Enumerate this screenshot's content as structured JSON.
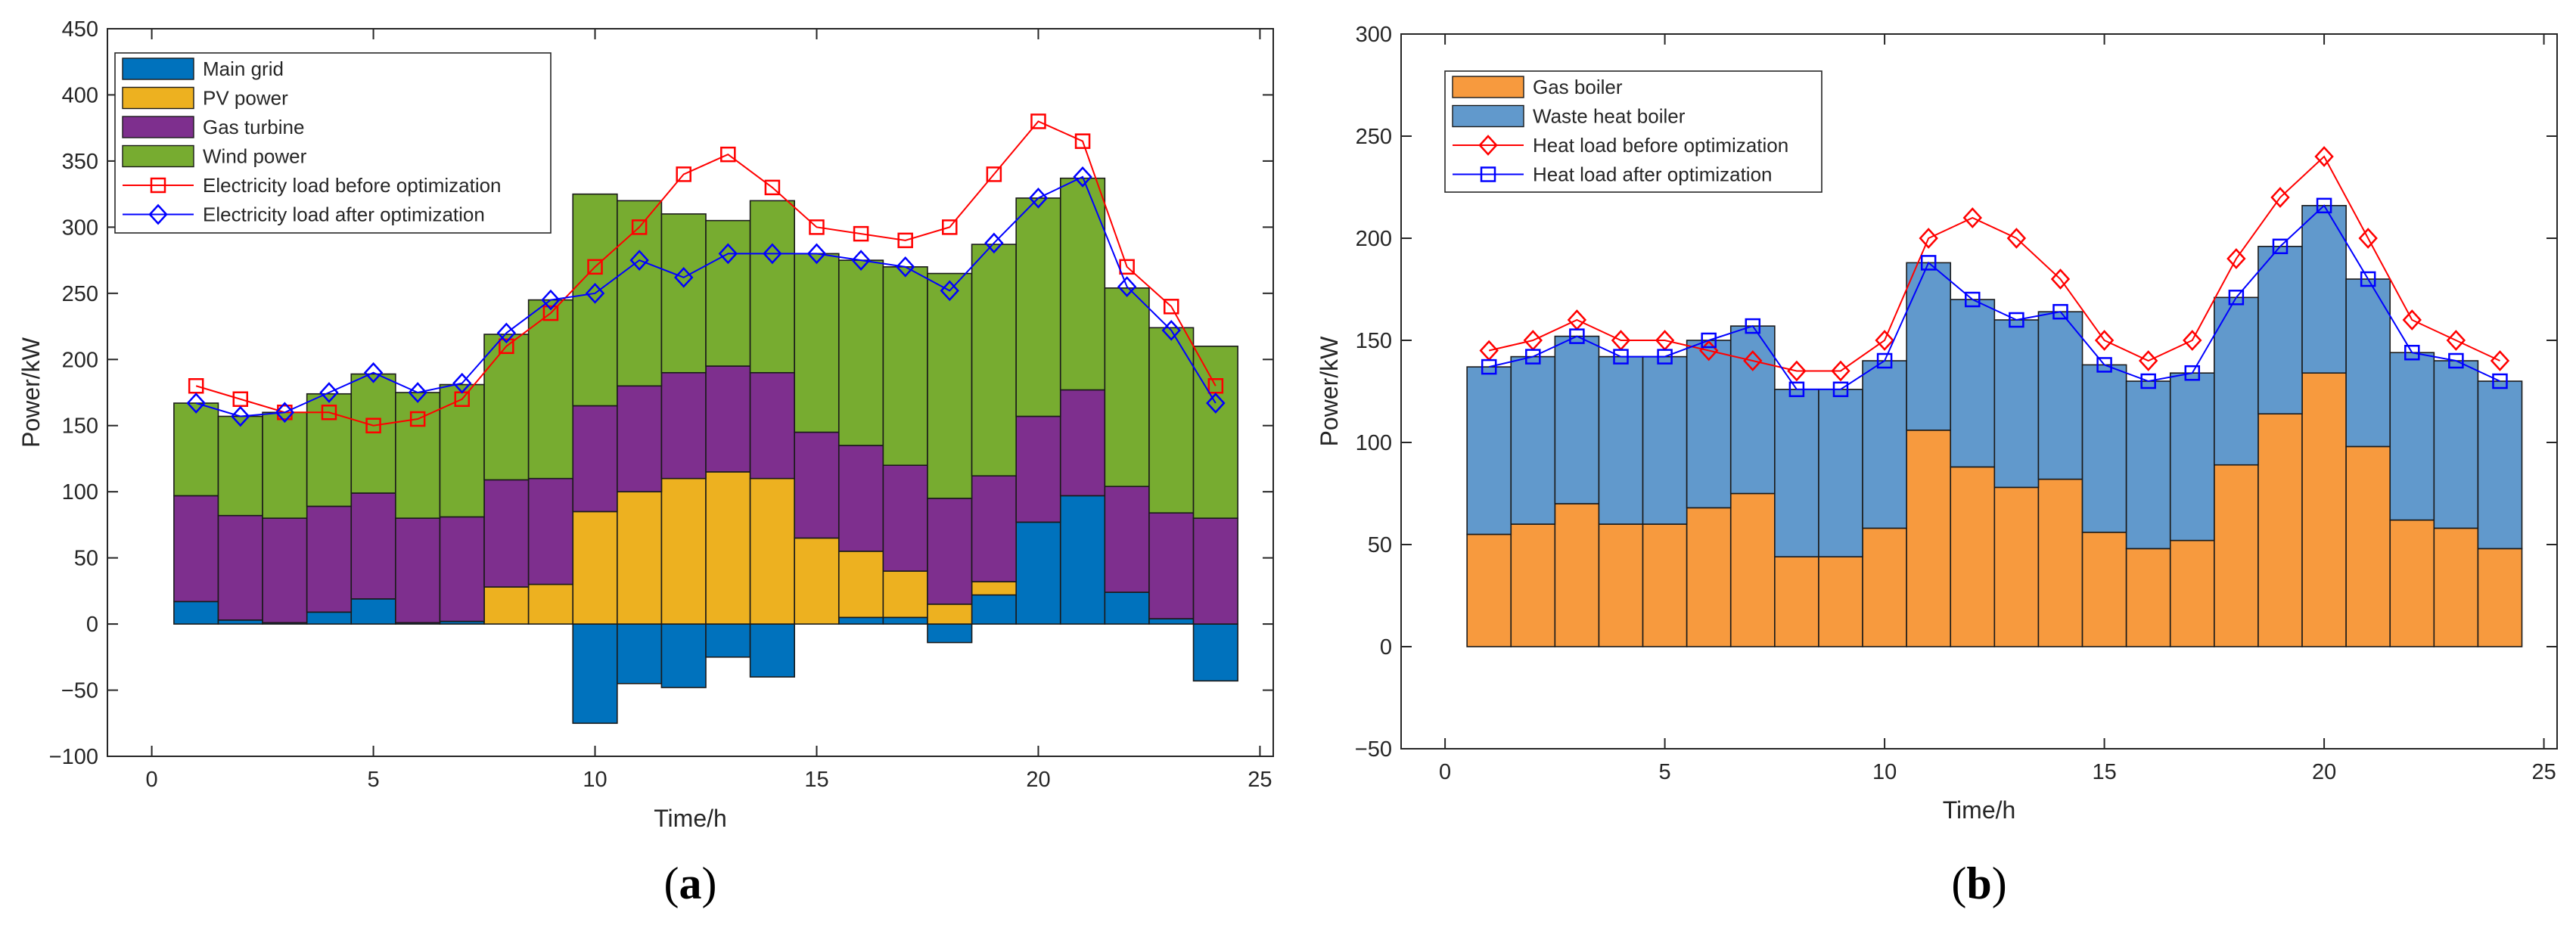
{
  "chart_data": [
    {
      "type": "bar",
      "stacked": true,
      "panel_label": "(a)",
      "panel_letter": "a",
      "xlabel": "Time/h",
      "ylabel": "Power/kW",
      "xlim": [
        -1,
        25.3
      ],
      "ylim": [
        -100,
        450
      ],
      "xticks": [
        0,
        5,
        10,
        15,
        20,
        25
      ],
      "yticks": [
        -100,
        -50,
        0,
        50,
        100,
        150,
        200,
        250,
        300,
        350,
        400,
        450
      ],
      "ytick_labels": [
        "−100",
        "−50",
        "0",
        "50",
        "100",
        "150",
        "200",
        "250",
        "300",
        "350",
        "400",
        "450"
      ],
      "legend_position": "top-left",
      "x": [
        1,
        2,
        3,
        4,
        5,
        6,
        7,
        8,
        9,
        10,
        11,
        12,
        13,
        14,
        15,
        16,
        17,
        18,
        19,
        20,
        21,
        22,
        23,
        24
      ],
      "series": [
        {
          "name": "Main grid",
          "kind": "bar",
          "color": "#0072BD",
          "values": [
            17,
            3,
            1,
            9,
            19,
            1,
            2,
            0,
            0,
            -75,
            -45,
            -48,
            -25,
            -40,
            0,
            5,
            5,
            -14,
            22,
            77,
            97,
            24,
            4,
            -43
          ]
        },
        {
          "name": "PV power",
          "kind": "bar",
          "color": "#EDB120",
          "values": [
            0,
            0,
            0,
            0,
            0,
            0,
            0,
            28,
            30,
            85,
            100,
            110,
            115,
            110,
            65,
            50,
            35,
            15,
            10,
            0,
            0,
            0,
            0,
            0
          ]
        },
        {
          "name": "Gas turbine",
          "kind": "bar",
          "color": "#7E2F8E",
          "values": [
            80,
            79,
            79,
            80,
            80,
            79,
            79,
            81,
            80,
            80,
            80,
            80,
            80,
            80,
            80,
            80,
            80,
            80,
            80,
            80,
            80,
            80,
            80,
            80
          ]
        },
        {
          "name": "Wind power",
          "kind": "bar",
          "color": "#77AC30",
          "values": [
            70,
            75,
            80,
            85,
            90,
            95,
            100,
            110,
            135,
            160,
            140,
            120,
            110,
            130,
            135,
            140,
            150,
            170,
            175,
            165,
            160,
            150,
            140,
            130
          ]
        },
        {
          "name": "Electricity load  before optimization",
          "kind": "line",
          "marker": "square",
          "color": "#FF0000",
          "values": [
            180,
            170,
            160,
            160,
            150,
            155,
            170,
            210,
            235,
            270,
            300,
            340,
            355,
            330,
            300,
            295,
            290,
            300,
            340,
            380,
            365,
            270,
            240,
            180
          ]
        },
        {
          "name": "Electricity load after optimization",
          "kind": "line",
          "marker": "diamond",
          "color": "#0000FF",
          "values": [
            167,
            157,
            160,
            175,
            190,
            175,
            182,
            220,
            245,
            250,
            275,
            262,
            280,
            280,
            280,
            275,
            270,
            252,
            288,
            322,
            338,
            255,
            222,
            167
          ]
        }
      ]
    },
    {
      "type": "bar",
      "stacked": true,
      "panel_label": "(b)",
      "panel_letter": "b",
      "xlabel": "Time/h",
      "ylabel": "Power/kW",
      "xlim": [
        -1,
        25.3
      ],
      "ylim": [
        -50,
        300
      ],
      "xticks": [
        0,
        5,
        10,
        15,
        20,
        25
      ],
      "yticks": [
        -50,
        0,
        50,
        100,
        150,
        200,
        250,
        300
      ],
      "ytick_labels": [
        "−50",
        "0",
        "50",
        "100",
        "150",
        "200",
        "250",
        "300"
      ],
      "legend_position": "top-left",
      "x": [
        1,
        2,
        3,
        4,
        5,
        6,
        7,
        8,
        9,
        10,
        11,
        12,
        13,
        14,
        15,
        16,
        17,
        18,
        19,
        20,
        21,
        22,
        23,
        24
      ],
      "series": [
        {
          "name": "Gas boiler",
          "kind": "bar",
          "color": "#F79A3E",
          "values": [
            55,
            60,
            70,
            60,
            60,
            68,
            75,
            44,
            44,
            58,
            106,
            88,
            78,
            82,
            56,
            48,
            52,
            89,
            114,
            134,
            98,
            62,
            58,
            48
          ]
        },
        {
          "name": "Waste heat boiler",
          "kind": "bar",
          "color": "#6199CC",
          "values": [
            82,
            82,
            82,
            82,
            82,
            82,
            82,
            82,
            82,
            82,
            82,
            82,
            82,
            82,
            82,
            82,
            82,
            82,
            82,
            82,
            82,
            82,
            82,
            82
          ]
        },
        {
          "name": "Heat load before optimization",
          "kind": "line",
          "marker": "diamond",
          "color": "#FF0000",
          "values": [
            145,
            150,
            160,
            150,
            150,
            145,
            140,
            135,
            135,
            150,
            200,
            210,
            200,
            180,
            150,
            140,
            150,
            190,
            220,
            240,
            200,
            160,
            150,
            140
          ]
        },
        {
          "name": "Heat load after optimization",
          "kind": "line",
          "marker": "square",
          "color": "#0000FF",
          "values": [
            137,
            142,
            152,
            142,
            142,
            150,
            157,
            126,
            126,
            140,
            188,
            170,
            160,
            164,
            138,
            130,
            134,
            171,
            196,
            216,
            180,
            144,
            140,
            130
          ]
        }
      ]
    }
  ]
}
